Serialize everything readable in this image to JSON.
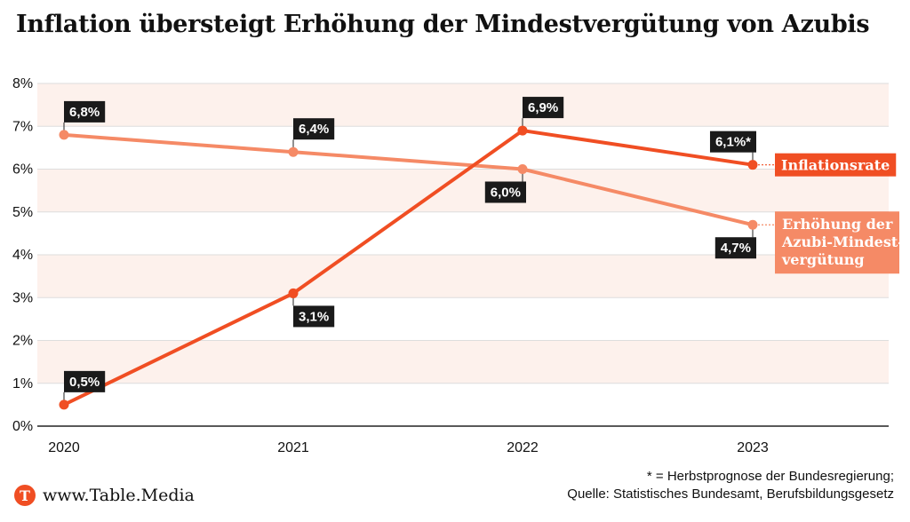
{
  "title": "Inflation übersteigt Erhöhung der Mindestvergütung von Azubis",
  "brand": {
    "icon": "T",
    "text": "www.Table.Media"
  },
  "footnote": {
    "line1": "* = Herbstprognose der Bundesregierung;",
    "line2": "Quelle: Statistisches Bundesamt, Berufsbildungsgesetz"
  },
  "colors": {
    "inflation": "#f04e23",
    "azubi": "#f58a66",
    "band": "#fdf1ec",
    "label_bg": "#1a1a1a"
  },
  "chart_data": {
    "type": "line",
    "title": "Inflation übersteigt Erhöhung der Mindestvergütung von Azubis",
    "categories": [
      "2020",
      "2021",
      "2022",
      "2023"
    ],
    "y_ticks": [
      "0%",
      "1%",
      "2%",
      "3%",
      "4%",
      "5%",
      "6%",
      "7%",
      "8%"
    ],
    "ylim": [
      0,
      8
    ],
    "grid": true,
    "series": [
      {
        "name": "Inflationsrate",
        "values": [
          0.5,
          3.1,
          6.9,
          6.1
        ],
        "labels": [
          "0,5%",
          "3,1%",
          "6,9%",
          "6,1%*"
        ],
        "color": "#f04e23"
      },
      {
        "name": "Erhöhung der Azubi-Mindestvergütung",
        "name_lines": [
          "Erhöhung der",
          "Azubi-Mindest-",
          "vergütung"
        ],
        "values": [
          6.8,
          6.4,
          6.0,
          4.7
        ],
        "labels": [
          "6,8%",
          "6,4%",
          "6,0%",
          "4,7%"
        ],
        "color": "#f58a66"
      }
    ]
  }
}
